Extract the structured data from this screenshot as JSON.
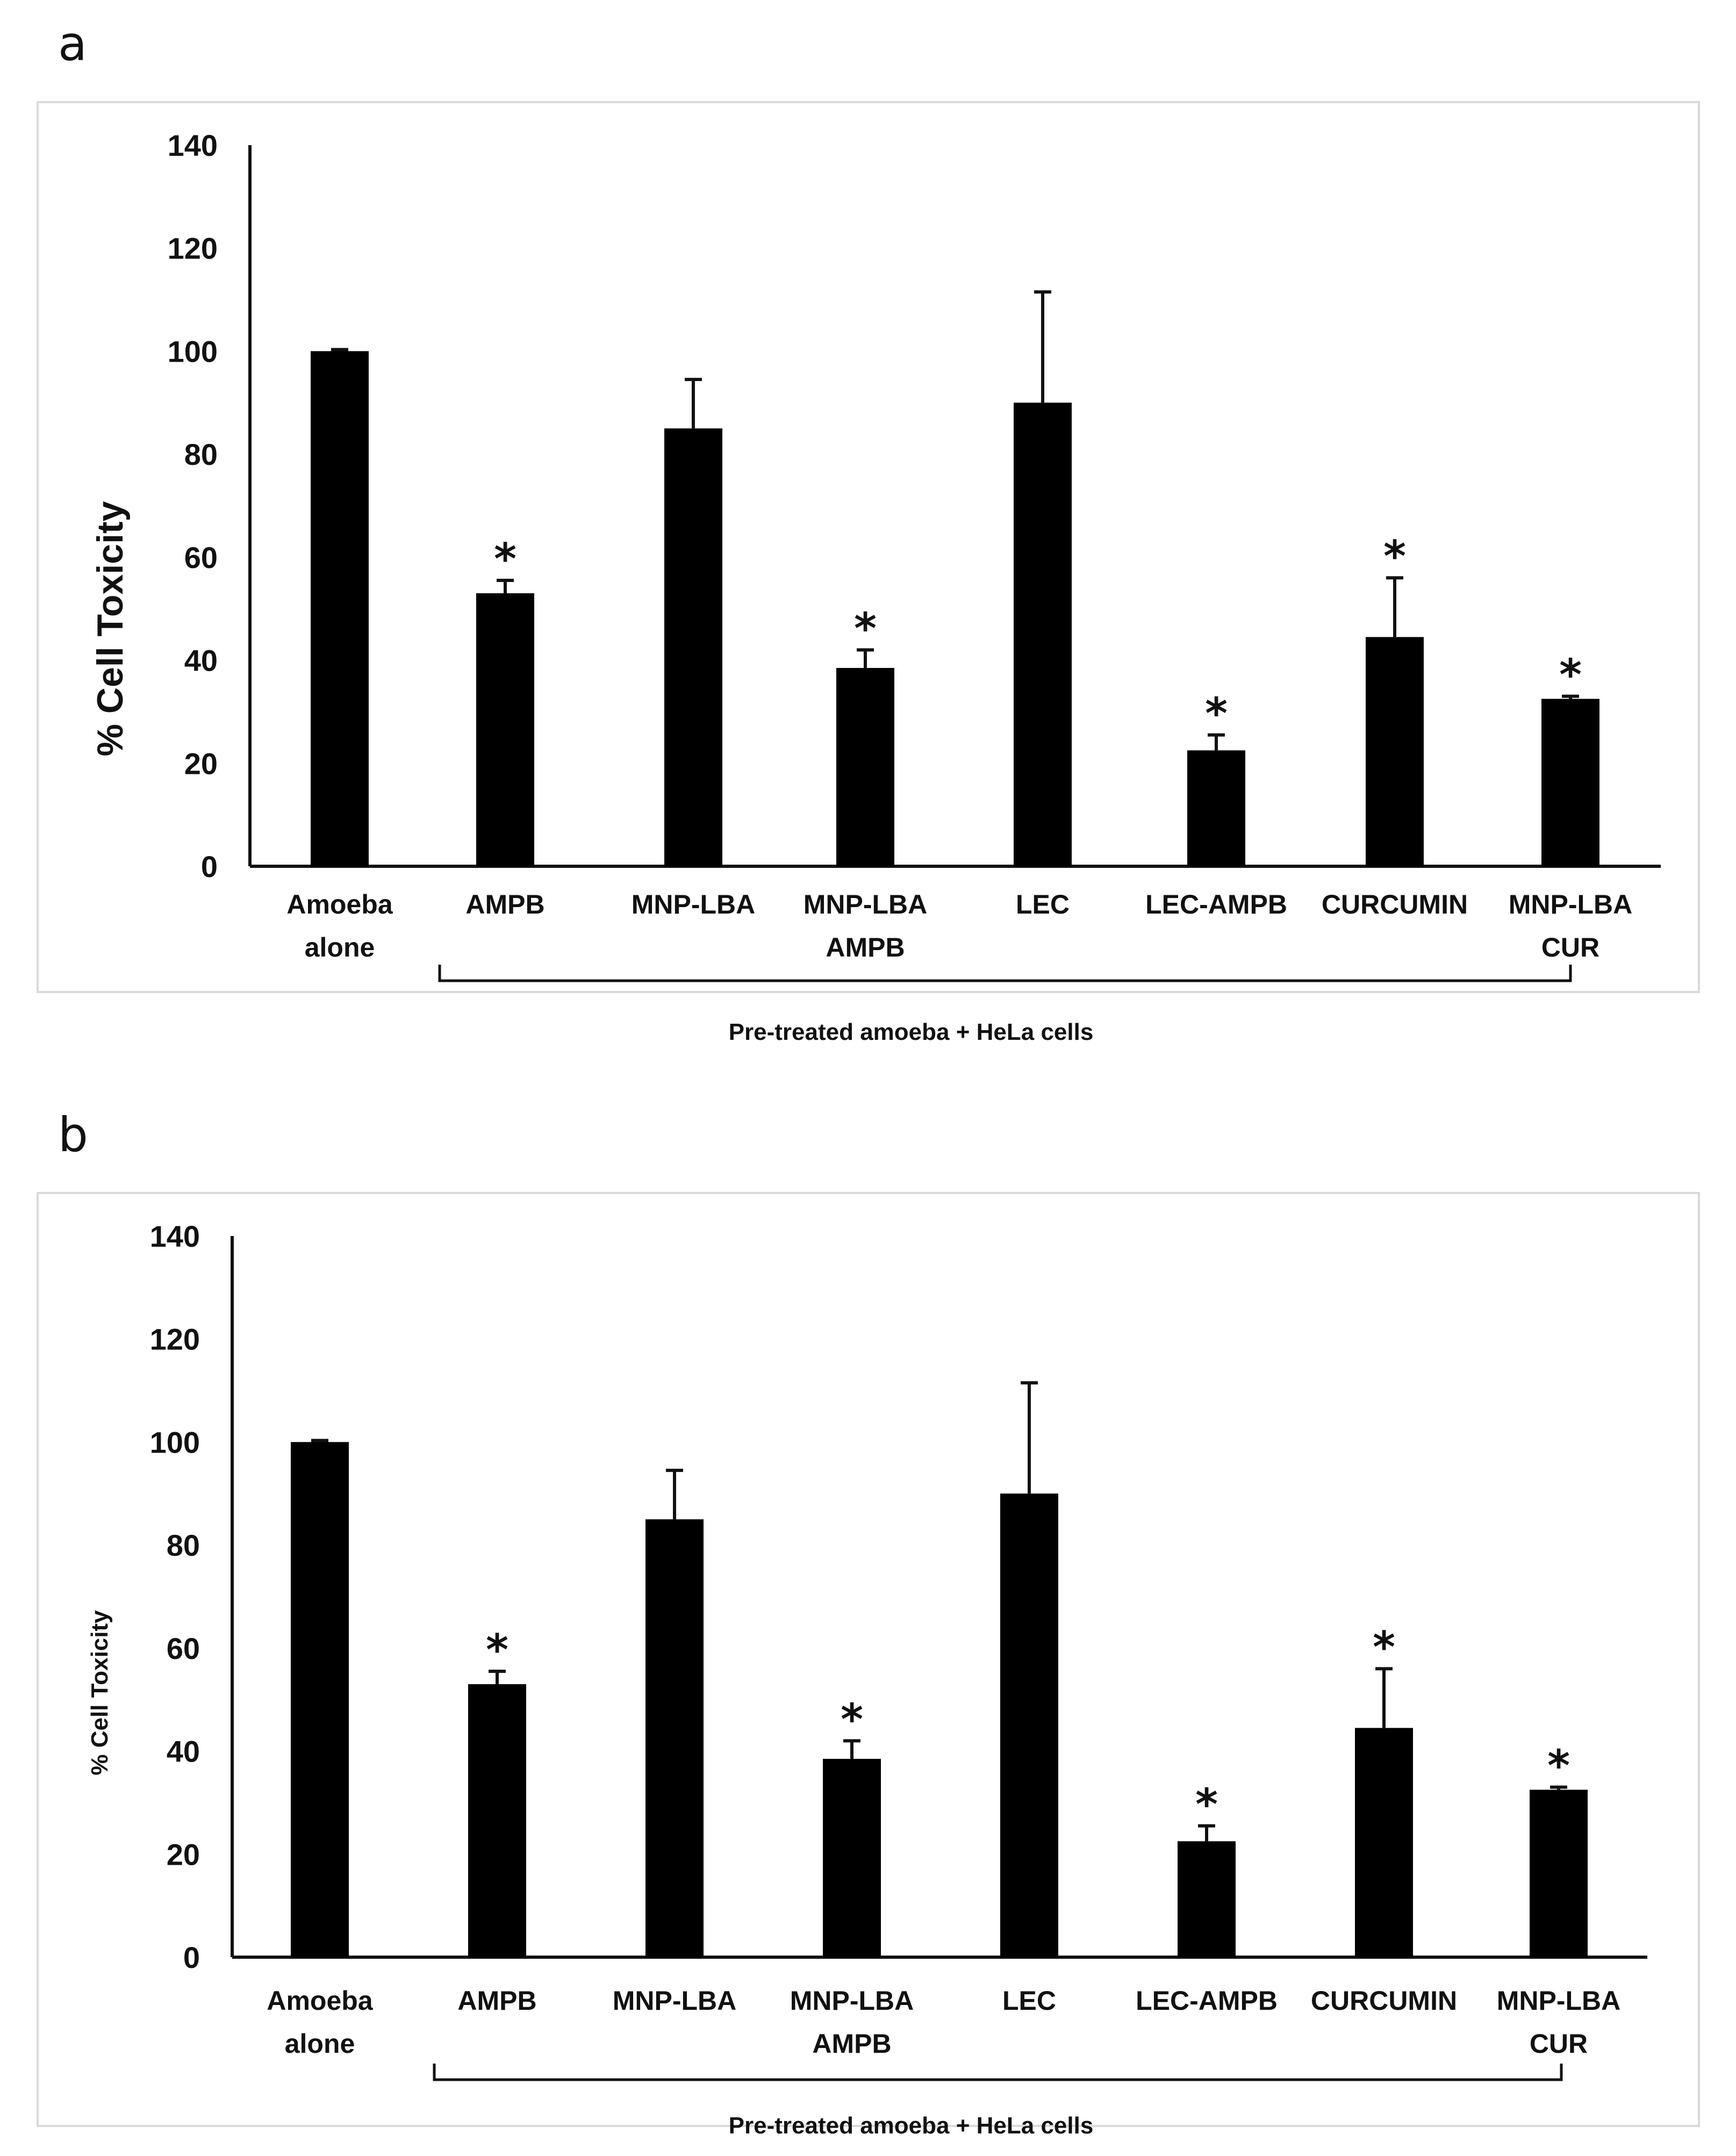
{
  "chart_data": [
    {
      "panel": "a",
      "type": "bar",
      "ylabel": "% Cell Toxicity",
      "ylim": [
        0,
        140
      ],
      "yticks": [
        "0",
        "20",
        "40",
        "60",
        "80",
        "100",
        "120",
        "140"
      ],
      "categories": [
        [
          "Amoeba",
          "alone"
        ],
        [
          "AMPB"
        ],
        [
          "MNP-LBA"
        ],
        [
          "MNP-LBA",
          "AMPB"
        ],
        [
          "LEC"
        ],
        [
          "LEC-AMPB"
        ],
        [
          "CURCUMIN"
        ],
        [
          "MNP-LBA",
          "CUR"
        ]
      ],
      "values": [
        100,
        53,
        85,
        38.5,
        90,
        22.5,
        44.5,
        32.5
      ],
      "errors": [
        0.3,
        2.5,
        9.5,
        3.5,
        21.5,
        3,
        11.5,
        0.5
      ],
      "significance": [
        "",
        "*",
        "",
        "*",
        "",
        "*",
        "*",
        "*"
      ],
      "group_label": "Pre-treated amoeba + HeLa cells"
    },
    {
      "panel": "b",
      "type": "bar",
      "ylabel": "% Cell Toxicity",
      "ylim": [
        0,
        140
      ],
      "yticks": [
        "0",
        "20",
        "40",
        "60",
        "80",
        "100",
        "120",
        "140"
      ],
      "categories": [
        [
          "Amoeba",
          "alone"
        ],
        [
          "AMPB"
        ],
        [
          "MNP-LBA"
        ],
        [
          "MNP-LBA",
          "AMPB"
        ],
        [
          "LEC"
        ],
        [
          "LEC-AMPB"
        ],
        [
          "CURCUMIN"
        ],
        [
          "MNP-LBA",
          "CUR"
        ]
      ],
      "values": [
        100,
        53,
        85,
        38.5,
        90,
        22.5,
        44.5,
        32.5
      ],
      "errors": [
        0.3,
        2.5,
        9.5,
        3.5,
        21.5,
        3,
        11.5,
        0.5
      ],
      "significance": [
        "",
        "*",
        "",
        "*",
        "",
        "*",
        "*",
        "*"
      ],
      "group_label": "Pre-treated amoeba + HeLa cells"
    }
  ],
  "style": {
    "bar_color": "#000000",
    "axis_color": "#111111",
    "frame_color": "#d9d9d9"
  }
}
